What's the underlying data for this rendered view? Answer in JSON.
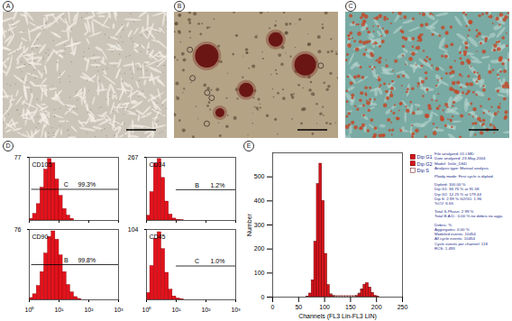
{
  "panel_labels": [
    "A",
    "B",
    "C",
    "D",
    "E"
  ],
  "chart_data": [
    {
      "type": "histogram",
      "title": "CD105",
      "log": "x",
      "tick_labels": "y",
      "color": "#e3121b",
      "bins": [
        1,
        1.33,
        1.78,
        2.37,
        3.16,
        4.22,
        5.62,
        7.5,
        10,
        13.3,
        17.8,
        23.7,
        31.6,
        42.2,
        56.2,
        75,
        100,
        133,
        178,
        237,
        316,
        422,
        562,
        750,
        1000
      ],
      "counts": [
        2,
        8,
        20,
        40,
        62,
        75,
        70,
        50,
        30,
        14,
        6,
        2,
        0,
        0,
        0,
        0,
        0,
        0,
        0,
        0,
        0,
        0,
        0,
        0
      ],
      "xlim": [
        1,
        1000
      ],
      "xticks": [
        {
          "value": 1,
          "label": "10⁰"
        },
        {
          "value": 10,
          "label": "10¹"
        },
        {
          "value": 100,
          "label": "10²"
        },
        {
          "value": 1000,
          "label": "10³"
        }
      ],
      "ylim": [
        0,
        77
      ],
      "yticks": [
        77
      ],
      "gate": {
        "name": "C",
        "text": "99.3%",
        "x": [
          1.2,
          1000
        ],
        "y": 38
      }
    },
    {
      "type": "histogram",
      "title": "CD34",
      "log": "x",
      "tick_labels": "y",
      "color": "#e3121b",
      "bins": [
        1,
        1.33,
        1.78,
        2.37,
        3.16,
        4.22,
        5.62,
        7.5,
        10,
        13.3,
        17.8,
        23.7,
        31.6,
        42.2,
        56.2,
        75,
        100,
        133,
        178,
        237,
        316,
        422,
        562,
        750,
        1000
      ],
      "counts": [
        20,
        120,
        240,
        260,
        180,
        80,
        25,
        8,
        3,
        1,
        0,
        0,
        0,
        0,
        0,
        0,
        0,
        0,
        0,
        0,
        0,
        0,
        0,
        0
      ],
      "xlim": [
        1,
        1000
      ],
      "xticks": [
        {
          "value": 1,
          "label": "10⁰"
        },
        {
          "value": 10,
          "label": "10¹"
        },
        {
          "value": 100,
          "label": "10²"
        },
        {
          "value": 1000,
          "label": "10³"
        }
      ],
      "ylim": [
        0,
        267
      ],
      "yticks": [
        267
      ],
      "gate": {
        "name": "B",
        "text": "1.2%",
        "x": [
          10,
          1000
        ],
        "y": 130
      }
    },
    {
      "type": "histogram",
      "title": "CD90",
      "log": "x",
      "color": "#e3121b",
      "bins": [
        1,
        1.33,
        1.78,
        2.37,
        3.16,
        4.22,
        5.62,
        7.5,
        10,
        13.3,
        17.8,
        23.7,
        31.6,
        42.2,
        56.2,
        75,
        100,
        133,
        178,
        237,
        316,
        422,
        562,
        750,
        1000
      ],
      "counts": [
        2,
        6,
        15,
        30,
        50,
        68,
        74,
        65,
        48,
        30,
        16,
        8,
        3,
        1,
        0,
        0,
        0,
        0,
        0,
        0,
        0,
        0,
        0,
        0
      ],
      "xlim": [
        1,
        1000
      ],
      "xticks": [
        {
          "value": 1,
          "label": "10⁰"
        },
        {
          "value": 10,
          "label": "10¹"
        },
        {
          "value": 100,
          "label": "10²"
        },
        {
          "value": 1000,
          "label": "10³"
        }
      ],
      "ylim": [
        0,
        76
      ],
      "yticks": [
        76
      ],
      "gate": {
        "name": "B",
        "text": "99.8%",
        "x": [
          1.2,
          1000
        ],
        "y": 38
      }
    },
    {
      "type": "histogram",
      "title": "CD45",
      "log": "x",
      "color": "#e3121b",
      "bins": [
        1,
        1.33,
        1.78,
        2.37,
        3.16,
        4.22,
        5.62,
        7.5,
        10,
        13.3,
        17.8,
        23.7,
        31.6,
        42.2,
        56.2,
        75,
        100,
        133,
        178,
        237,
        316,
        422,
        562,
        750,
        1000
      ],
      "counts": [
        10,
        50,
        90,
        100,
        75,
        40,
        15,
        5,
        2,
        1,
        0,
        0,
        0,
        0,
        0,
        0,
        0,
        0,
        0,
        0,
        0,
        0,
        0,
        0
      ],
      "xlim": [
        1,
        1000
      ],
      "xticks": [
        {
          "value": 1,
          "label": "10⁰"
        },
        {
          "value": 10,
          "label": "10¹"
        },
        {
          "value": 100,
          "label": "10²"
        },
        {
          "value": 1000,
          "label": "10³"
        }
      ],
      "ylim": [
        0,
        104
      ],
      "yticks": [
        104
      ],
      "gate": {
        "name": "C",
        "text": "1.0%",
        "x": [
          10,
          1000
        ],
        "y": 50
      }
    },
    {
      "type": "histogram",
      "x_label": "Channels (FL3 Lin-FL3 LIN)",
      "y_label": "Number",
      "stacked": true,
      "legend": "right",
      "bins": [
        0,
        5,
        10,
        15,
        20,
        25,
        30,
        35,
        40,
        45,
        50,
        55,
        60,
        65,
        70,
        75,
        80,
        85,
        90,
        95,
        100,
        105,
        110,
        115,
        120,
        125,
        130,
        135,
        140,
        145,
        150,
        155,
        160,
        165,
        170,
        175,
        180,
        185,
        190,
        195,
        200,
        205,
        210,
        215,
        220,
        225,
        230,
        235,
        240,
        245,
        250
      ],
      "series": [
        {
          "name": "Dip G1",
          "color": "#d7141c",
          "values": [
            0,
            0,
            0,
            0,
            0,
            0,
            0,
            0,
            0,
            0,
            0,
            0,
            0,
            2,
            15,
            70,
            230,
            470,
            555,
            400,
            180,
            50,
            10,
            3,
            0,
            0,
            0,
            0,
            0,
            0,
            0,
            0,
            0,
            0,
            0,
            0,
            0,
            0,
            0,
            0,
            0,
            0,
            0,
            0,
            0,
            0,
            0,
            0,
            0,
            0
          ]
        },
        {
          "name": "Dip G2",
          "color": "#d7141c",
          "values": [
            0,
            0,
            0,
            0,
            0,
            0,
            0,
            0,
            0,
            0,
            0,
            0,
            0,
            0,
            0,
            0,
            0,
            0,
            0,
            0,
            0,
            0,
            0,
            0,
            0,
            0,
            0,
            0,
            0,
            0,
            0,
            0,
            3,
            12,
            30,
            52,
            58,
            40,
            18,
            5,
            1,
            0,
            0,
            0,
            0,
            0,
            0,
            0,
            0,
            0
          ]
        },
        {
          "name": "Dip S",
          "color": "#ffffff",
          "values": [
            0,
            0,
            0,
            0,
            0,
            0,
            0,
            0,
            0,
            0,
            0,
            0,
            0,
            0,
            0,
            0,
            0,
            0,
            0,
            0,
            0,
            0,
            2,
            3,
            4,
            4,
            4,
            4,
            4,
            4,
            4,
            4,
            3,
            3,
            2,
            0,
            0,
            0,
            0,
            0,
            0,
            0,
            0,
            0,
            0,
            0,
            0,
            0,
            0,
            0
          ]
        }
      ],
      "xlim": [
        0,
        250
      ],
      "xticks": [
        0,
        50,
        100,
        150,
        200,
        250
      ],
      "ylim": [
        0,
        600
      ],
      "yticks": [
        0,
        100,
        200,
        300,
        400,
        500
      ],
      "annotations": [
        [
          "File analyzed: 01.LMD",
          "Date analyzed: 23-May-2004",
          "Model: 1n0n_DSD",
          "Analysis type: Manual analysis"
        ],
        [
          "Ploidy mode: First cycle is diploid"
        ],
        [
          "Diploid: 100.00 %",
          "Dip G1: 84.76 % at 91.58",
          "Dip G2: 12.25 % at 179.44",
          "Dip S: 2.99 % G2/G1: 1.96",
          "%CV: 6.65"
        ],
        [
          "Total S-Phase: 2.99 %",
          "Total B.A.D.: 0.00 % no debris no aggs"
        ],
        [
          "Debris: %",
          "Aggregates: 0.00 %",
          "Modeled events: 10454",
          "All cycle events: 10454",
          "Cycle events per channel: 118",
          "RCS: 1.493"
        ]
      ]
    }
  ]
}
